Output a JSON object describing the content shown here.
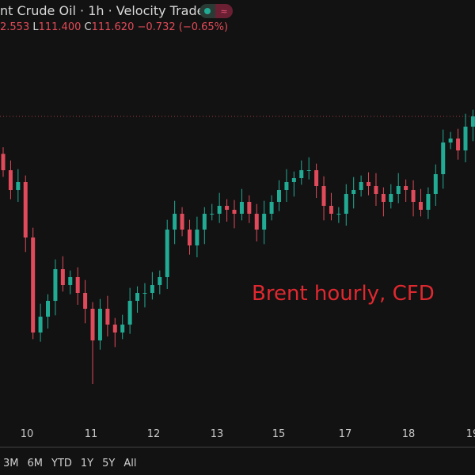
{
  "header": {
    "title": "nt Crude Oil · 1h · Velocity Trade",
    "badge_icons": [
      "market-open-dot-icon",
      "replay-wave-icon"
    ],
    "ohlc": {
      "h_value": "2.553",
      "l_label": "L",
      "l_value": "111.400",
      "c_label": "C",
      "c_value": "111.620",
      "change": "−0.732 (−0.65%)"
    }
  },
  "annotation": "Brent hourly, CFD",
  "range_buttons": [
    "3M",
    "6M",
    "YTD",
    "1Y",
    "5Y",
    "All"
  ],
  "colors": {
    "background": "#121212",
    "up": "#22ab94",
    "down": "#e04a5a",
    "price_line": "#e04a5a",
    "annotation": "#e0282f"
  },
  "chart_data": {
    "type": "candlestick",
    "title": "",
    "interval": "1h",
    "x_tick_labels": [
      "10",
      "11",
      "12",
      "13",
      "15",
      "17",
      "18",
      "19"
    ],
    "last_price": 111.62,
    "price_line": true,
    "grid": false,
    "closes": [
      109.58,
      108.83,
      109.13,
      107.03,
      103.43,
      104.03,
      104.63,
      105.83,
      105.23,
      105.53,
      104.93,
      104.33,
      103.13,
      104.33,
      103.73,
      103.43,
      103.73,
      104.63,
      104.93,
      104.93,
      105.23,
      105.53,
      107.33,
      107.93,
      107.33,
      106.73,
      107.33,
      107.93,
      107.93,
      108.23,
      108.08,
      107.93,
      108.38,
      107.93,
      107.33,
      107.93,
      108.38,
      108.83,
      109.13,
      109.28,
      109.58,
      109.58,
      108.98,
      108.23,
      107.93,
      107.93,
      108.68,
      108.83,
      109.13,
      108.98,
      108.68,
      108.38,
      108.68,
      108.98,
      108.83,
      108.38,
      108.08,
      108.68,
      109.43,
      110.63,
      110.78,
      110.33,
      111.23,
      111.62
    ],
    "first_open": 110.2,
    "notable_low": 101.48
  }
}
